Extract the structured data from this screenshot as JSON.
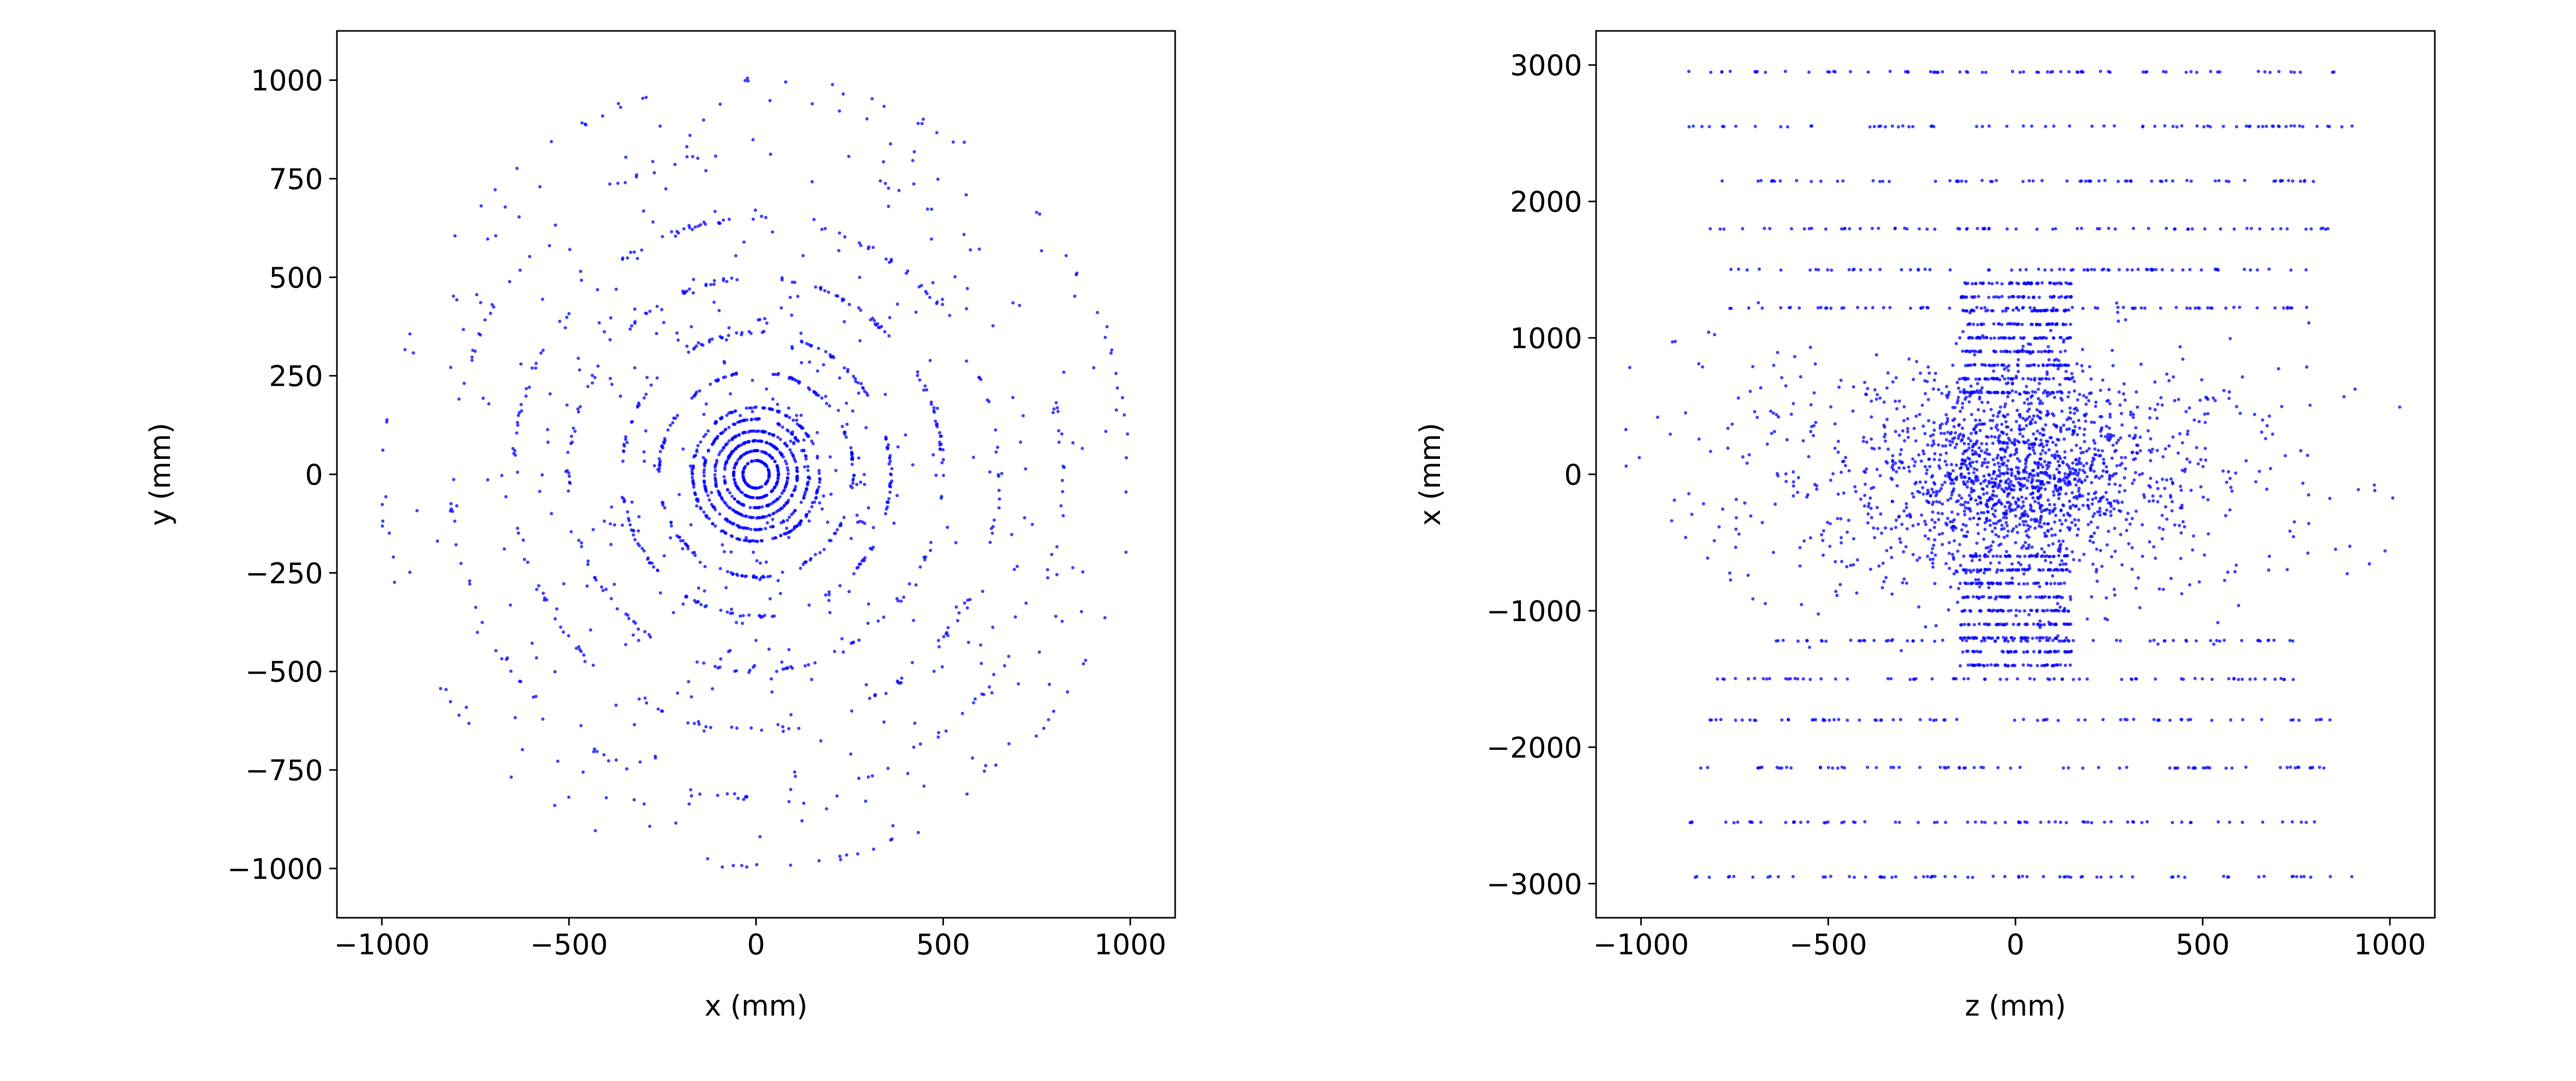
{
  "figure": {
    "background": "#ffffff",
    "marker_color": "#0000ff"
  },
  "chart_data": [
    {
      "type": "scatter",
      "title": "",
      "xlabel": "x (mm)",
      "ylabel": "y (mm)",
      "xlim": [
        -1120,
        1120
      ],
      "ylim": [
        -1125,
        1125
      ],
      "xticks": [
        -1000,
        -500,
        0,
        500,
        1000
      ],
      "yticks": [
        -1000,
        -750,
        -500,
        -250,
        0,
        250,
        500,
        750,
        1000
      ],
      "xtick_labels": [
        "−1000",
        "−500",
        "0",
        "500",
        "1000"
      ],
      "ytick_labels": [
        "−1000",
        "−750",
        "−500",
        "−250",
        "0",
        "250",
        "500",
        "750",
        "1000"
      ],
      "grid": false,
      "series": [
        {
          "color": "#0000ff",
          "marker_size": 0.5,
          "structure": "concentric rings",
          "ring_radii": [
            35,
            60,
            85,
            110,
            140,
            170,
            260,
            360,
            500,
            650,
            820,
            1000
          ],
          "ring_point_counts": [
            90,
            110,
            130,
            150,
            140,
            160,
            200,
            200,
            200,
            200,
            130,
            110
          ],
          "scattered_point_count": 420,
          "approx_point_count": 2240
        }
      ]
    },
    {
      "type": "scatter",
      "title": "",
      "xlabel": "z (mm)",
      "ylabel": "x (mm)",
      "xlim": [
        -1120,
        1120
      ],
      "ylim": [
        -3250,
        3250
      ],
      "xticks": [
        -1000,
        -500,
        0,
        500,
        1000
      ],
      "yticks": [
        -3000,
        -2000,
        -1000,
        0,
        1000,
        2000,
        3000
      ],
      "xtick_labels": [
        "−1000",
        "−500",
        "0",
        "500",
        "1000"
      ],
      "ytick_labels": [
        "−3000",
        "−2000",
        "−1000",
        "0",
        "1000",
        "2000",
        "3000"
      ],
      "grid": false,
      "series": [
        {
          "color": "#0000ff",
          "marker_size": 0.5,
          "structure": "horizontal layers plus central cloud",
          "layer_x_values": [
            2950,
            2550,
            2150,
            1800,
            1500,
            1220,
            -1220,
            -1500,
            -1800,
            -2150,
            -2550,
            -2950,
            1400,
            1300,
            1200,
            1100,
            1000,
            900,
            800,
            700,
            600,
            -600,
            -700,
            -800,
            -900,
            -1000,
            -1100,
            -1200,
            -1300,
            -1400
          ],
          "layer_z_half_extents": [
            900,
            900,
            850,
            850,
            800,
            780,
            780,
            800,
            850,
            850,
            900,
            900,
            150,
            150,
            150,
            150,
            150,
            150,
            150,
            150,
            150,
            150,
            150,
            150,
            150,
            150,
            150,
            150,
            150,
            150
          ],
          "layer_point_counts": [
            70,
            70,
            70,
            70,
            70,
            70,
            70,
            70,
            70,
            70,
            70,
            70,
            45,
            45,
            45,
            45,
            45,
            45,
            45,
            45,
            45,
            45,
            45,
            45,
            45,
            45,
            45,
            45,
            45,
            45
          ],
          "cloud_point_count": 1900,
          "approx_point_count": 3590
        }
      ]
    }
  ]
}
